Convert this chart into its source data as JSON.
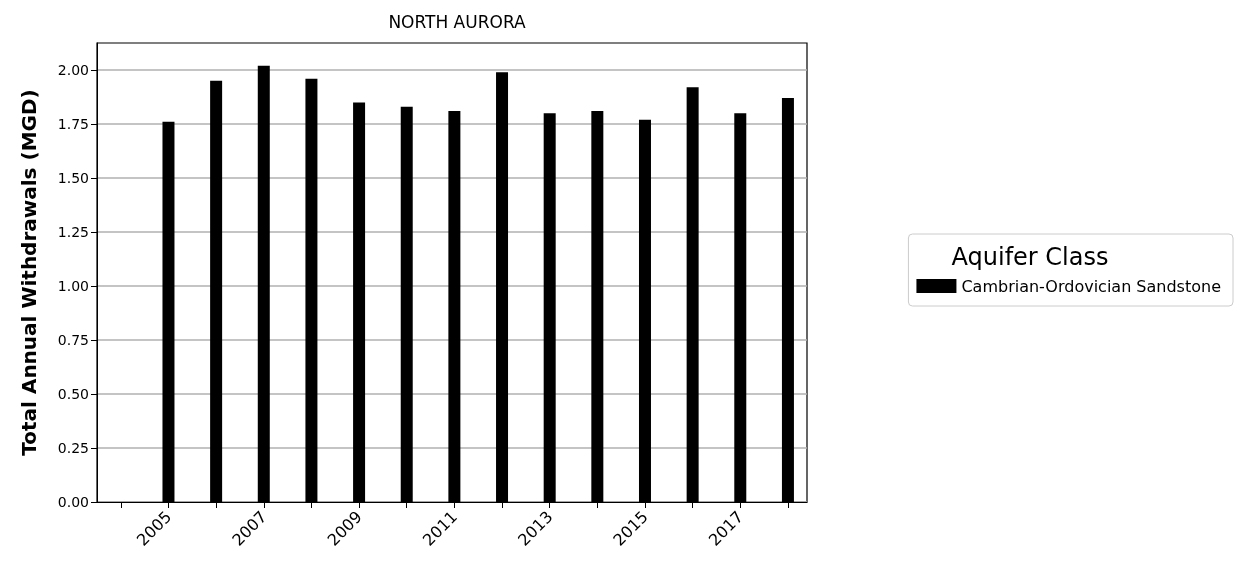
{
  "chart_data": {
    "type": "bar",
    "title": "NORTH AURORA",
    "ylabel": "Total Annual Withdrawals (MGD)",
    "legend_title": "Aquifer Class",
    "x": [
      2005,
      2006,
      2007,
      2008,
      2009,
      2010,
      2011,
      2012,
      2013,
      2014,
      2015,
      2016,
      2017,
      2018
    ],
    "series": [
      {
        "name": "Cambrian-Ordovician Sandstone",
        "color": "#000000",
        "values": [
          1.76,
          1.95,
          2.02,
          1.96,
          1.85,
          1.83,
          1.81,
          1.99,
          1.8,
          1.81,
          1.77,
          1.92,
          1.8,
          1.87
        ]
      }
    ],
    "xlim": [
      2003.5,
      2018.4
    ],
    "xticks": [
      {
        "value": 2004,
        "label": null
      },
      2005,
      {
        "value": 2006,
        "label": null
      },
      2007,
      {
        "value": 2008,
        "label": null
      },
      2009,
      {
        "value": 2010,
        "label": null
      },
      2011,
      {
        "value": 2012,
        "label": null
      },
      2013,
      {
        "value": 2014,
        "label": null
      },
      2015,
      {
        "value": 2016,
        "label": null
      },
      2017,
      {
        "value": 2018,
        "label": null
      }
    ],
    "ylim": [
      0,
      2.125
    ],
    "yticks": [
      {
        "value": 0,
        "label": "0.00"
      },
      {
        "value": 0.25,
        "label": "0.25"
      },
      {
        "value": 0.5,
        "label": "0.50"
      },
      {
        "value": 0.75,
        "label": "0.75"
      },
      {
        "value": 1,
        "label": "1.00"
      },
      {
        "value": 1.25,
        "label": "1.25"
      },
      {
        "value": 1.5,
        "label": "1.50"
      },
      {
        "value": 1.75,
        "label": "1.75"
      },
      {
        "value": 2,
        "label": "2.00"
      }
    ],
    "grid": "y",
    "legend": "right"
  }
}
